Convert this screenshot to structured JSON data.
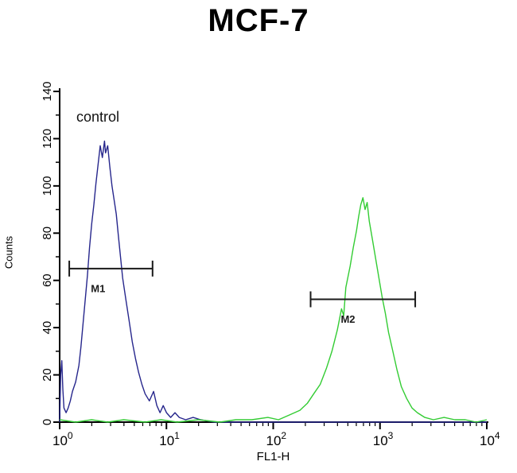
{
  "page": {
    "background": "#ffffff"
  },
  "chart_data": {
    "type": "line",
    "title": "MCF-7",
    "xlabel": "FL1-H",
    "ylabel": "Counts",
    "x_scale": "log10",
    "x_decades": [
      0,
      1,
      2,
      3,
      4
    ],
    "ylim": [
      0,
      140
    ],
    "yticks": [
      0,
      20,
      40,
      60,
      80,
      100,
      120,
      140
    ],
    "grid": "off",
    "legend": "off",
    "annotations": [
      {
        "text": "control",
        "log_x": 0.15,
        "y": 128
      }
    ],
    "gates": [
      {
        "label": "M1",
        "y": 65,
        "log_x_start": 0.09,
        "log_x_end": 0.87,
        "label_log_x": 0.36,
        "label_y": 55,
        "color": "#1a1a1a"
      },
      {
        "label": "M2",
        "y": 52,
        "log_x_start": 2.35,
        "log_x_end": 3.33,
        "label_log_x": 2.7,
        "label_y": 42,
        "color": "#1a1a1a"
      }
    ],
    "series": [
      {
        "name": "blue_control_curve",
        "color": "#26268c",
        "points": [
          [
            0.0,
            0
          ],
          [
            0.01,
            20
          ],
          [
            0.02,
            26
          ],
          [
            0.03,
            14
          ],
          [
            0.04,
            6
          ],
          [
            0.06,
            4
          ],
          [
            0.08,
            6
          ],
          [
            0.1,
            9
          ],
          [
            0.12,
            13
          ],
          [
            0.15,
            17
          ],
          [
            0.18,
            24
          ],
          [
            0.2,
            32
          ],
          [
            0.22,
            42
          ],
          [
            0.24,
            52
          ],
          [
            0.26,
            62
          ],
          [
            0.28,
            74
          ],
          [
            0.3,
            84
          ],
          [
            0.32,
            92
          ],
          [
            0.34,
            101
          ],
          [
            0.36,
            109
          ],
          [
            0.38,
            117
          ],
          [
            0.4,
            112
          ],
          [
            0.42,
            119
          ],
          [
            0.43,
            114
          ],
          [
            0.45,
            117
          ],
          [
            0.47,
            108
          ],
          [
            0.49,
            100
          ],
          [
            0.51,
            94
          ],
          [
            0.53,
            88
          ],
          [
            0.55,
            79
          ],
          [
            0.57,
            70
          ],
          [
            0.59,
            61
          ],
          [
            0.62,
            52
          ],
          [
            0.65,
            43
          ],
          [
            0.68,
            34
          ],
          [
            0.71,
            27
          ],
          [
            0.74,
            21
          ],
          [
            0.77,
            16
          ],
          [
            0.8,
            12
          ],
          [
            0.84,
            9
          ],
          [
            0.88,
            13
          ],
          [
            0.91,
            7
          ],
          [
            0.94,
            4
          ],
          [
            0.97,
            7
          ],
          [
            1.0,
            4
          ],
          [
            1.04,
            2
          ],
          [
            1.08,
            4
          ],
          [
            1.12,
            2
          ],
          [
            1.18,
            1
          ],
          [
            1.25,
            2
          ],
          [
            1.32,
            1
          ],
          [
            1.45,
            0
          ],
          [
            2.0,
            0
          ],
          [
            3.0,
            0
          ],
          [
            4.0,
            0
          ]
        ]
      },
      {
        "name": "green_sample_curve",
        "color": "#33cc33",
        "points": [
          [
            0.0,
            1
          ],
          [
            0.15,
            0
          ],
          [
            0.3,
            1
          ],
          [
            0.45,
            0
          ],
          [
            0.6,
            1
          ],
          [
            0.8,
            0
          ],
          [
            0.95,
            1
          ],
          [
            1.1,
            0
          ],
          [
            1.3,
            1
          ],
          [
            1.5,
            0
          ],
          [
            1.65,
            1
          ],
          [
            1.8,
            1
          ],
          [
            1.95,
            2
          ],
          [
            2.05,
            1
          ],
          [
            2.15,
            3
          ],
          [
            2.25,
            5
          ],
          [
            2.32,
            8
          ],
          [
            2.38,
            12
          ],
          [
            2.44,
            16
          ],
          [
            2.5,
            23
          ],
          [
            2.55,
            30
          ],
          [
            2.6,
            39
          ],
          [
            2.64,
            48
          ],
          [
            2.66,
            45
          ],
          [
            2.68,
            57
          ],
          [
            2.72,
            66
          ],
          [
            2.75,
            74
          ],
          [
            2.78,
            81
          ],
          [
            2.8,
            87
          ],
          [
            2.82,
            92
          ],
          [
            2.84,
            95
          ],
          [
            2.86,
            90
          ],
          [
            2.88,
            93
          ],
          [
            2.9,
            85
          ],
          [
            2.93,
            77
          ],
          [
            2.96,
            69
          ],
          [
            2.99,
            61
          ],
          [
            3.02,
            53
          ],
          [
            3.05,
            46
          ],
          [
            3.08,
            38
          ],
          [
            3.12,
            30
          ],
          [
            3.16,
            22
          ],
          [
            3.2,
            15
          ],
          [
            3.25,
            10
          ],
          [
            3.3,
            6
          ],
          [
            3.35,
            4
          ],
          [
            3.42,
            2
          ],
          [
            3.5,
            1
          ],
          [
            3.6,
            2
          ],
          [
            3.7,
            1
          ],
          [
            3.8,
            1
          ],
          [
            3.9,
            0
          ],
          [
            4.0,
            1
          ]
        ]
      }
    ]
  }
}
